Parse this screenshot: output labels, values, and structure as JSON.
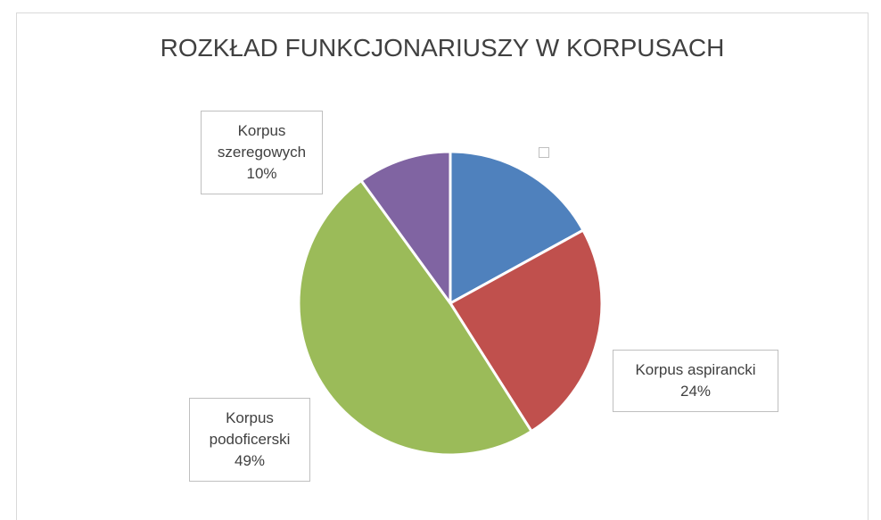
{
  "chart_data": {
    "type": "pie",
    "title": "ROZKŁAD FUNKCJONARIUSZY W KORPUSACH",
    "categories": [
      null,
      "Korpus aspirancki",
      "Korpus podoficerski",
      "Korpus szeregowych"
    ],
    "values": [
      17,
      24,
      49,
      10
    ],
    "value_labels": [
      null,
      "24%",
      "49%",
      "10%"
    ],
    "colors": [
      "#4f81bd",
      "#c0504d",
      "#9bbb59",
      "#8064a2"
    ]
  }
}
